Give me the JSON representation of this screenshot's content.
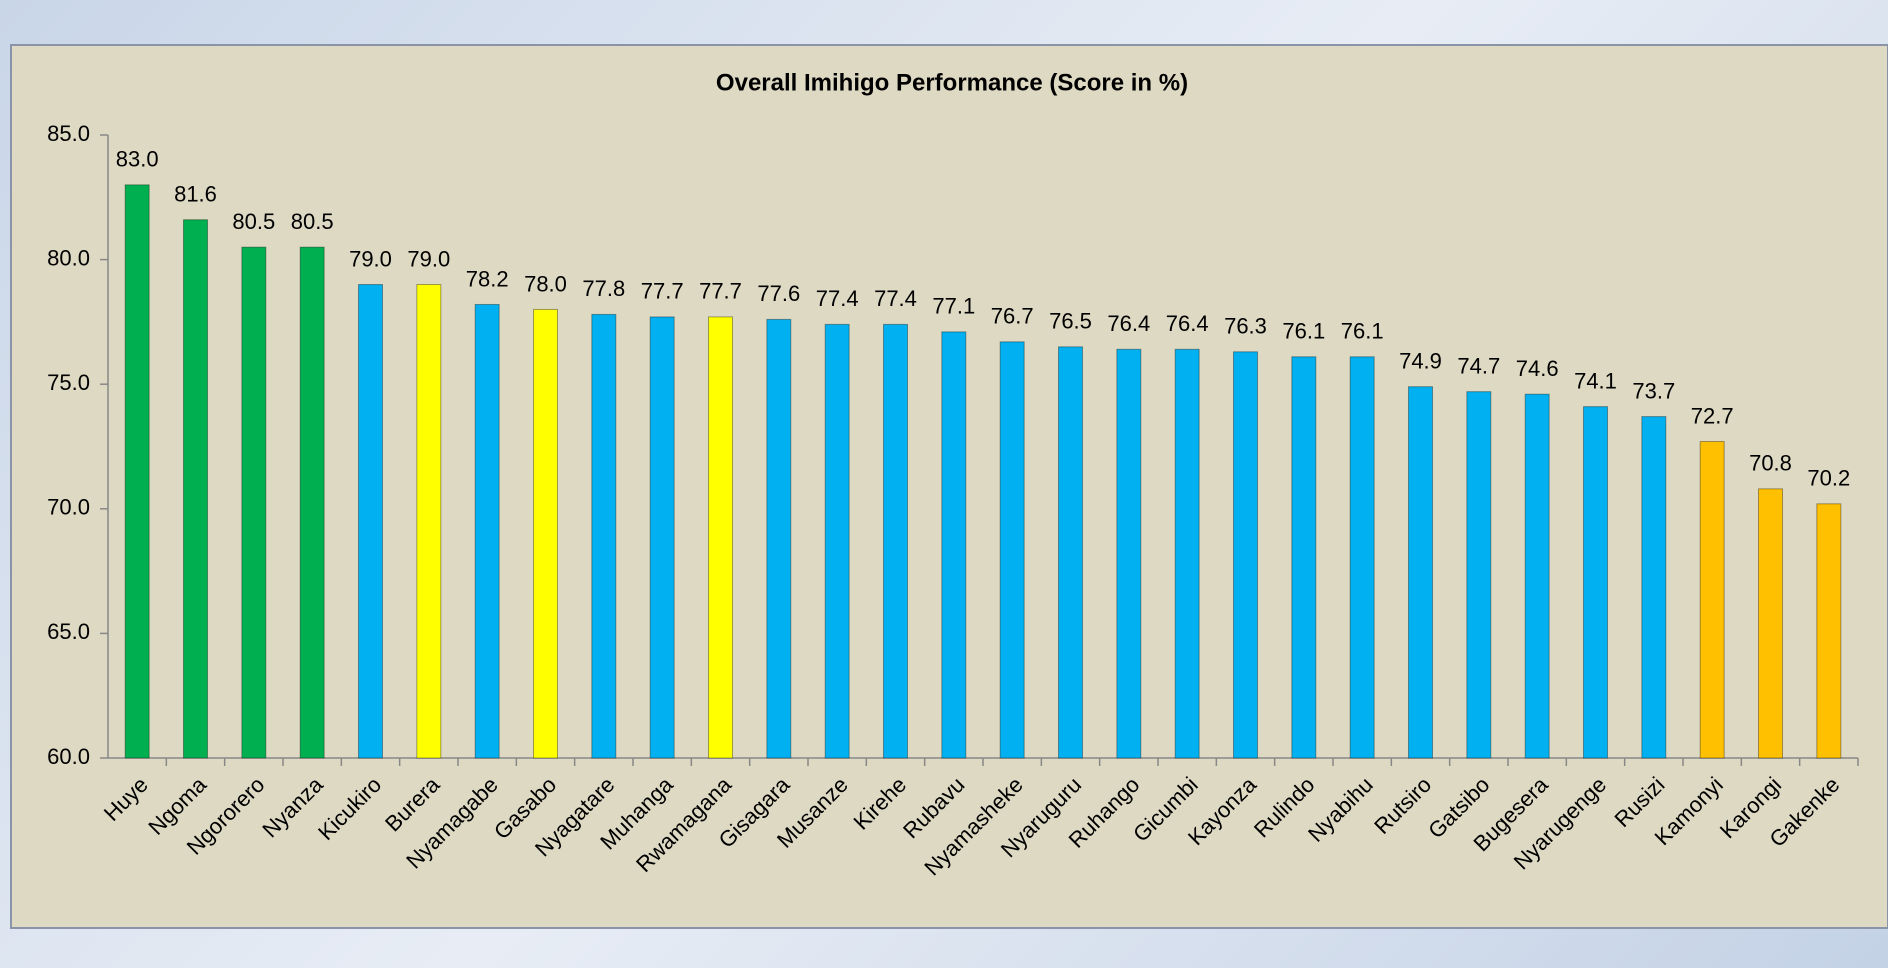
{
  "chart_data": {
    "type": "bar",
    "title": "Overall Imihigo Performance (Score in %)",
    "categories": [
      "Huye",
      "Ngoma",
      "Ngororero",
      "Nyanza",
      "Kicukiro",
      "Burera",
      "Nyamagabe",
      "Gasabo",
      "Nyagatare",
      "Muhanga",
      "Rwamagana",
      "Gisagara",
      "Musanze",
      "Kirehe",
      "Rubavu",
      "Nyamasheke",
      "Nyaruguru",
      "Ruhango",
      "Gicumbi",
      "Kayonza",
      "Rulindo",
      "Nyabihu",
      "Rutsiro",
      "Gatsibo",
      "Bugesera",
      "Nyarugenge",
      "Rusizi",
      "Kamonyi",
      "Karongi",
      "Gakenke"
    ],
    "values": [
      83.0,
      81.6,
      80.5,
      80.5,
      79.0,
      79.0,
      78.2,
      78.0,
      77.8,
      77.7,
      77.7,
      77.6,
      77.4,
      77.4,
      77.1,
      76.7,
      76.5,
      76.4,
      76.4,
      76.3,
      76.1,
      76.1,
      74.9,
      74.7,
      74.6,
      74.1,
      73.7,
      72.7,
      70.8,
      70.2
    ],
    "value_labels": [
      "83.0",
      "81.6",
      "80.5",
      "80.5",
      "79.0",
      "79.0",
      "78.2",
      "78.0",
      "77.8",
      "77.7",
      "77.7",
      "77.6",
      "77.4",
      "77.4",
      "77.1",
      "76.7",
      "76.5",
      "76.4",
      "76.4",
      "76.3",
      "76.1",
      "76.1",
      "74.9",
      "74.7",
      "74.6",
      "74.1",
      "73.7",
      "72.7",
      "70.8",
      "70.2"
    ],
    "colors": [
      "#00b050",
      "#00b050",
      "#00b050",
      "#00b050",
      "#00b0f0",
      "#ffff00",
      "#00b0f0",
      "#ffff00",
      "#00b0f0",
      "#00b0f0",
      "#ffff00",
      "#00b0f0",
      "#00b0f0",
      "#00b0f0",
      "#00b0f0",
      "#00b0f0",
      "#00b0f0",
      "#00b0f0",
      "#00b0f0",
      "#00b0f0",
      "#00b0f0",
      "#00b0f0",
      "#00b0f0",
      "#00b0f0",
      "#00b0f0",
      "#00b0f0",
      "#00b0f0",
      "#ffc000",
      "#ffc000",
      "#ffc000"
    ],
    "ylim": [
      60,
      85
    ],
    "yticks": [
      {
        "value": 60,
        "label": "60.0"
      },
      {
        "value": 65,
        "label": "65.0"
      },
      {
        "value": 70,
        "label": "70.0"
      },
      {
        "value": 75,
        "label": "75.0"
      },
      {
        "value": 80,
        "label": "80.0"
      },
      {
        "value": 85,
        "label": "85.0"
      }
    ],
    "grid": false
  }
}
